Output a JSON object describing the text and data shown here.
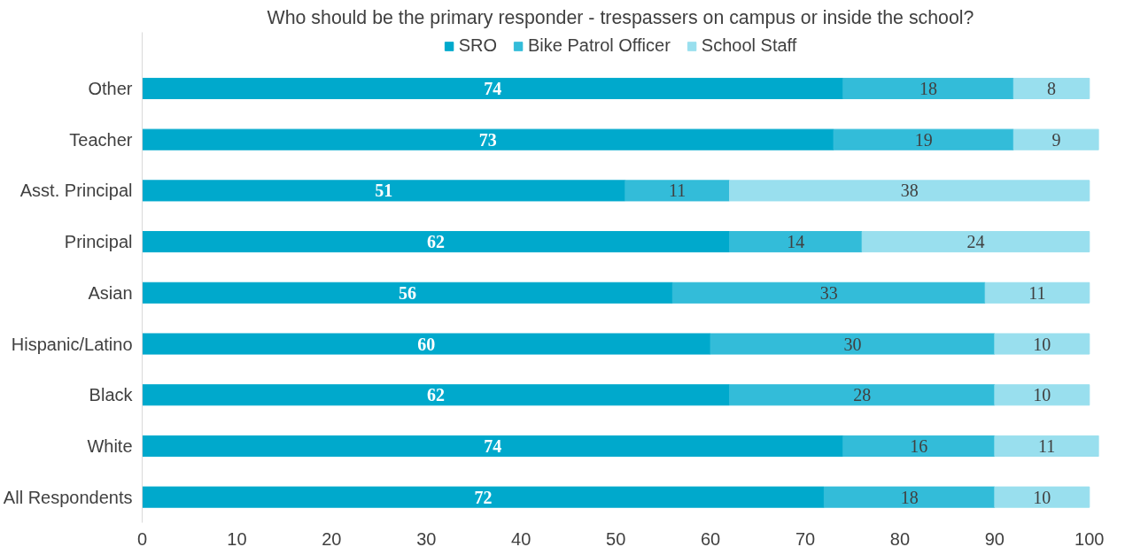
{
  "chart_data": {
    "type": "bar",
    "orientation": "horizontal",
    "stacked": true,
    "title": "Who should be the primary responder - trespassers on campus or inside the school?",
    "categories": [
      "Other",
      "Teacher",
      "Asst. Principal",
      "Principal",
      "Asian",
      "Hispanic/Latino",
      "Black",
      "White",
      "All Respondents"
    ],
    "series": [
      {
        "name": "SRO",
        "color": "#00a9cc",
        "values": [
          74,
          73,
          51,
          62,
          56,
          60,
          62,
          74,
          72
        ]
      },
      {
        "name": "Bike Patrol Officer",
        "color": "#33bcd9",
        "values": [
          18,
          19,
          11,
          14,
          33,
          30,
          28,
          16,
          18
        ]
      },
      {
        "name": "School Staff",
        "color": "#99dfee",
        "values": [
          8,
          9,
          38,
          24,
          11,
          10,
          10,
          11,
          10
        ]
      }
    ],
    "xlim": [
      0,
      101
    ],
    "xticks": [
      0,
      10,
      20,
      30,
      40,
      50,
      60,
      70,
      80,
      90,
      100
    ],
    "data_labels": true,
    "legend": "top",
    "grid": false
  }
}
